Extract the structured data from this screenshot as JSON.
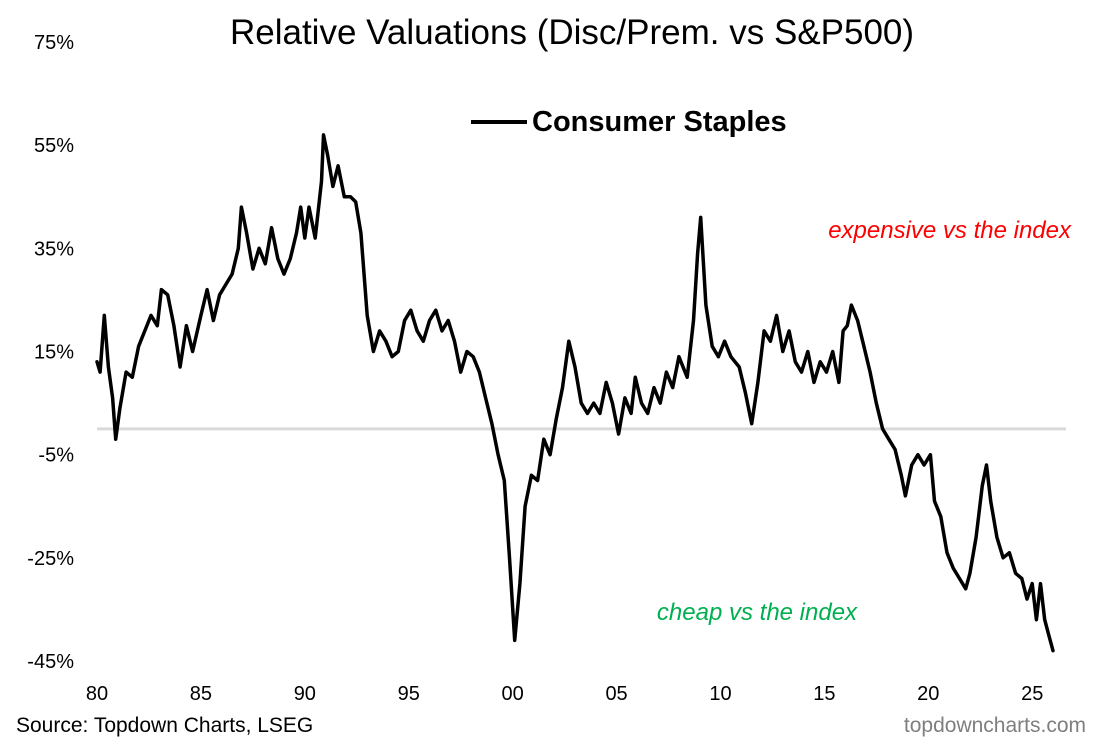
{
  "chart_data": {
    "type": "line",
    "title": "Relative Valuations (Disc/Prem. vs S&P500)",
    "xlabel": "",
    "ylabel": "",
    "ylim": [
      -45,
      75
    ],
    "xlim": [
      1980,
      2026
    ],
    "y_ticks": [
      75,
      55,
      35,
      15,
      -5,
      -25,
      -45
    ],
    "y_tick_labels": [
      "75%",
      "55%",
      "35%",
      "15%",
      "-5%",
      "-25%",
      "-45%"
    ],
    "x_ticks": [
      1980,
      1985,
      1990,
      1995,
      2000,
      2005,
      2010,
      2015,
      2020,
      2025
    ],
    "x_tick_labels": [
      "80",
      "85",
      "90",
      "95",
      "00",
      "05",
      "10",
      "15",
      "20",
      "25"
    ],
    "grid": false,
    "legend_position": "top-center",
    "reference_line": {
      "y": 0,
      "color": "#d9d9d9"
    },
    "series": [
      {
        "name": "Consumer Staples",
        "color": "#000000",
        "points": [
          [
            1980.0,
            13
          ],
          [
            1980.15,
            11
          ],
          [
            1980.35,
            22
          ],
          [
            1980.55,
            12
          ],
          [
            1980.75,
            6
          ],
          [
            1980.9,
            -2
          ],
          [
            1981.1,
            4
          ],
          [
            1981.4,
            11
          ],
          [
            1981.7,
            10
          ],
          [
            1982.0,
            16
          ],
          [
            1982.3,
            19
          ],
          [
            1982.6,
            22
          ],
          [
            1982.9,
            20
          ],
          [
            1983.1,
            27
          ],
          [
            1983.4,
            26
          ],
          [
            1983.7,
            20
          ],
          [
            1984.0,
            12
          ],
          [
            1984.3,
            20
          ],
          [
            1984.6,
            15
          ],
          [
            1985.0,
            22
          ],
          [
            1985.3,
            27
          ],
          [
            1985.6,
            21
          ],
          [
            1985.9,
            26
          ],
          [
            1986.2,
            28
          ],
          [
            1986.5,
            30
          ],
          [
            1986.8,
            35
          ],
          [
            1986.95,
            43
          ],
          [
            1987.2,
            38
          ],
          [
            1987.5,
            31
          ],
          [
            1987.8,
            35
          ],
          [
            1988.1,
            32
          ],
          [
            1988.4,
            39
          ],
          [
            1988.7,
            33
          ],
          [
            1989.0,
            30
          ],
          [
            1989.3,
            33
          ],
          [
            1989.6,
            38
          ],
          [
            1989.8,
            43
          ],
          [
            1990.0,
            37
          ],
          [
            1990.2,
            43
          ],
          [
            1990.5,
            37
          ],
          [
            1990.8,
            48
          ],
          [
            1990.9,
            57
          ],
          [
            1991.1,
            53
          ],
          [
            1991.35,
            47
          ],
          [
            1991.6,
            51
          ],
          [
            1991.9,
            45
          ],
          [
            1992.2,
            45
          ],
          [
            1992.45,
            44
          ],
          [
            1992.7,
            38
          ],
          [
            1993.0,
            22
          ],
          [
            1993.3,
            15
          ],
          [
            1993.6,
            19
          ],
          [
            1993.9,
            17
          ],
          [
            1994.2,
            14
          ],
          [
            1994.5,
            15
          ],
          [
            1994.8,
            21
          ],
          [
            1995.1,
            23
          ],
          [
            1995.4,
            19
          ],
          [
            1995.7,
            17
          ],
          [
            1996.0,
            21
          ],
          [
            1996.3,
            23
          ],
          [
            1996.6,
            19
          ],
          [
            1996.9,
            21
          ],
          [
            1997.2,
            17
          ],
          [
            1997.5,
            11
          ],
          [
            1997.8,
            15
          ],
          [
            1998.1,
            14
          ],
          [
            1998.4,
            11
          ],
          [
            1998.7,
            6
          ],
          [
            1999.0,
            1
          ],
          [
            1999.3,
            -5
          ],
          [
            1999.6,
            -10
          ],
          [
            1999.85,
            -25
          ],
          [
            2000.1,
            -41
          ],
          [
            2000.35,
            -30
          ],
          [
            2000.6,
            -15
          ],
          [
            2000.9,
            -9
          ],
          [
            2001.2,
            -10
          ],
          [
            2001.5,
            -2
          ],
          [
            2001.8,
            -5
          ],
          [
            2002.1,
            2
          ],
          [
            2002.4,
            8
          ],
          [
            2002.7,
            17
          ],
          [
            2003.0,
            12
          ],
          [
            2003.3,
            5
          ],
          [
            2003.6,
            3
          ],
          [
            2003.9,
            5
          ],
          [
            2004.2,
            3
          ],
          [
            2004.5,
            9
          ],
          [
            2004.8,
            5
          ],
          [
            2005.1,
            -1
          ],
          [
            2005.4,
            6
          ],
          [
            2005.7,
            3
          ],
          [
            2005.9,
            10
          ],
          [
            2006.2,
            5
          ],
          [
            2006.5,
            3
          ],
          [
            2006.8,
            8
          ],
          [
            2007.1,
            5
          ],
          [
            2007.4,
            11
          ],
          [
            2007.7,
            8
          ],
          [
            2008.0,
            14
          ],
          [
            2008.4,
            10
          ],
          [
            2008.7,
            21
          ],
          [
            2008.9,
            34
          ],
          [
            2009.05,
            41
          ],
          [
            2009.3,
            24
          ],
          [
            2009.6,
            16
          ],
          [
            2009.9,
            14
          ],
          [
            2010.2,
            17
          ],
          [
            2010.5,
            14
          ],
          [
            2010.9,
            12
          ],
          [
            2011.2,
            7
          ],
          [
            2011.5,
            1
          ],
          [
            2011.8,
            9
          ],
          [
            2012.1,
            19
          ],
          [
            2012.4,
            17
          ],
          [
            2012.7,
            22
          ],
          [
            2013.0,
            15
          ],
          [
            2013.3,
            19
          ],
          [
            2013.6,
            13
          ],
          [
            2013.9,
            11
          ],
          [
            2014.2,
            15
          ],
          [
            2014.5,
            9
          ],
          [
            2014.8,
            13
          ],
          [
            2015.1,
            11
          ],
          [
            2015.4,
            15
          ],
          [
            2015.7,
            9
          ],
          [
            2015.9,
            19
          ],
          [
            2016.1,
            20
          ],
          [
            2016.3,
            24
          ],
          [
            2016.6,
            21
          ],
          [
            2016.9,
            16
          ],
          [
            2017.2,
            11
          ],
          [
            2017.5,
            5
          ],
          [
            2017.8,
            0
          ],
          [
            2018.1,
            -2
          ],
          [
            2018.4,
            -4
          ],
          [
            2018.7,
            -9
          ],
          [
            2018.9,
            -13
          ],
          [
            2019.2,
            -7
          ],
          [
            2019.5,
            -5
          ],
          [
            2019.8,
            -7
          ],
          [
            2020.1,
            -5
          ],
          [
            2020.3,
            -14
          ],
          [
            2020.6,
            -17
          ],
          [
            2020.9,
            -24
          ],
          [
            2021.2,
            -27
          ],
          [
            2021.5,
            -29
          ],
          [
            2021.8,
            -31
          ],
          [
            2022.0,
            -28
          ],
          [
            2022.3,
            -21
          ],
          [
            2022.6,
            -11
          ],
          [
            2022.8,
            -7
          ],
          [
            2023.0,
            -14
          ],
          [
            2023.3,
            -21
          ],
          [
            2023.6,
            -25
          ],
          [
            2023.9,
            -24
          ],
          [
            2024.2,
            -28
          ],
          [
            2024.5,
            -29
          ],
          [
            2024.75,
            -33
          ],
          [
            2025.0,
            -30
          ],
          [
            2025.2,
            -37
          ],
          [
            2025.4,
            -30
          ],
          [
            2025.6,
            -37
          ],
          [
            2025.8,
            -40
          ],
          [
            2026.0,
            -43
          ]
        ]
      }
    ],
    "annotations": {
      "expensive": "expensive vs the index",
      "cheap": "cheap vs the index"
    }
  },
  "footer": {
    "source": "Source: Topdown Charts, LSEG",
    "brand": "topdowncharts.com"
  }
}
